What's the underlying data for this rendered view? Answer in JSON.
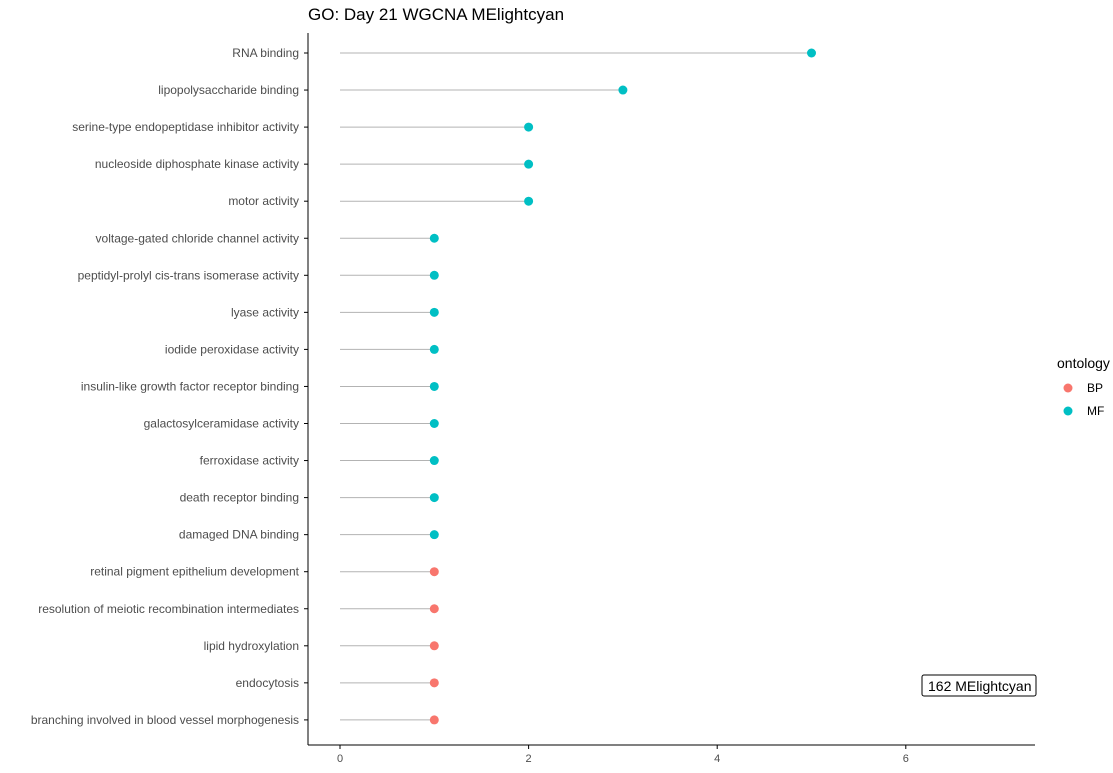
{
  "chart_data": {
    "type": "lollipop",
    "title": "GO: Day 21 WGCNA MElightcyan",
    "xlabel": "",
    "ylabel": "",
    "xlim": [
      0,
      7.3
    ],
    "x_ticks": [
      "0",
      "2",
      "4",
      "6"
    ],
    "grid": false,
    "legend": {
      "title": "ontology",
      "position": "right",
      "entries": [
        {
          "label": "BP",
          "color": "#F8766D"
        },
        {
          "label": "MF",
          "color": "#00BFC4"
        }
      ]
    },
    "annotation": "162 MElightcyan",
    "stem_color": "#b3b3b3",
    "rows": [
      {
        "term": "RNA binding",
        "value": 5,
        "ontology": "MF"
      },
      {
        "term": "lipopolysaccharide binding",
        "value": 3,
        "ontology": "MF"
      },
      {
        "term": "serine-type endopeptidase inhibitor activity",
        "value": 2,
        "ontology": "MF"
      },
      {
        "term": "nucleoside diphosphate kinase activity",
        "value": 2,
        "ontology": "MF"
      },
      {
        "term": "motor activity",
        "value": 2,
        "ontology": "MF"
      },
      {
        "term": "voltage-gated chloride channel activity",
        "value": 1,
        "ontology": "MF"
      },
      {
        "term": "peptidyl-prolyl cis-trans isomerase activity",
        "value": 1,
        "ontology": "MF"
      },
      {
        "term": "lyase activity",
        "value": 1,
        "ontology": "MF"
      },
      {
        "term": "iodide peroxidase activity",
        "value": 1,
        "ontology": "MF"
      },
      {
        "term": "insulin-like growth factor receptor binding",
        "value": 1,
        "ontology": "MF"
      },
      {
        "term": "galactosylceramidase activity",
        "value": 1,
        "ontology": "MF"
      },
      {
        "term": "ferroxidase activity",
        "value": 1,
        "ontology": "MF"
      },
      {
        "term": "death receptor binding",
        "value": 1,
        "ontology": "MF"
      },
      {
        "term": "damaged DNA binding",
        "value": 1,
        "ontology": "MF"
      },
      {
        "term": "retinal pigment epithelium development",
        "value": 1,
        "ontology": "BP"
      },
      {
        "term": "resolution of meiotic recombination intermediates",
        "value": 1,
        "ontology": "BP"
      },
      {
        "term": "lipid hydroxylation",
        "value": 1,
        "ontology": "BP"
      },
      {
        "term": "endocytosis",
        "value": 1,
        "ontology": "BP"
      },
      {
        "term": "branching involved in blood vessel morphogenesis",
        "value": 1,
        "ontology": "BP"
      }
    ]
  }
}
